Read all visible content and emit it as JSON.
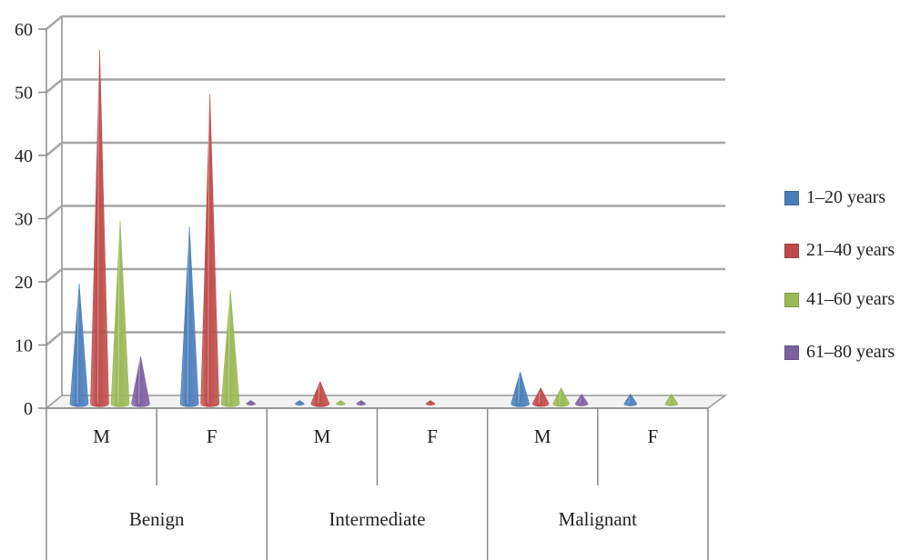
{
  "chart_data": {
    "type": "bar",
    "style": "3d-cone",
    "ylim": [
      0,
      60
    ],
    "y_ticks": [
      "0",
      "10",
      "20",
      "30",
      "40",
      "50",
      "60"
    ],
    "grid": true,
    "legend_position": "right",
    "groups": [
      {
        "label": "Benign",
        "subcategories": [
          "M",
          "F"
        ]
      },
      {
        "label": "Intermediate",
        "subcategories": [
          "M",
          "F"
        ]
      },
      {
        "label": "Malignant",
        "subcategories": [
          "M",
          "F"
        ]
      }
    ],
    "categories": [
      "M",
      "F",
      "M",
      "F",
      "M",
      "F"
    ],
    "series": [
      {
        "name": "1–20 years",
        "color": "#4a7ebb",
        "values": [
          19,
          28,
          0.5,
          0,
          5,
          1.5
        ]
      },
      {
        "name": "21–40 years",
        "color": "#be4b48",
        "values": [
          56,
          49,
          3.5,
          0.5,
          2.5,
          0
        ]
      },
      {
        "name": "41–60 years",
        "color": "#98b954",
        "values": [
          29,
          18,
          0.5,
          0,
          2.5,
          1.5
        ]
      },
      {
        "name": "61–80 years",
        "color": "#7d60a0",
        "values": [
          7.5,
          0.5,
          0.5,
          0,
          1.5,
          0
        ]
      }
    ]
  }
}
